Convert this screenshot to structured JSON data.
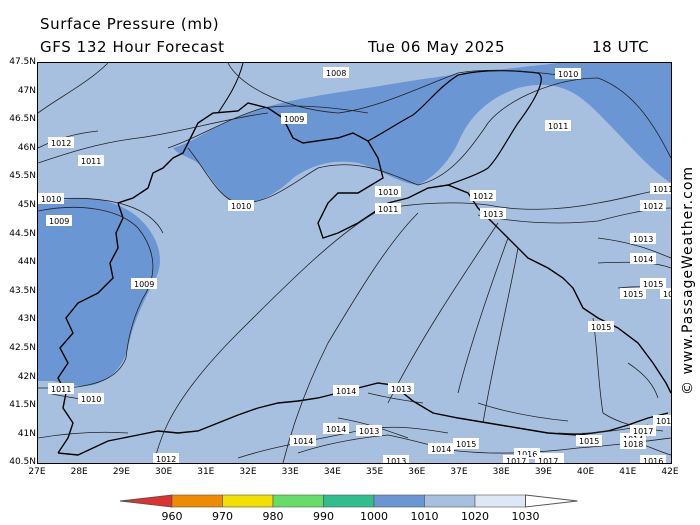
{
  "header": {
    "title": "Surface Pressure (mb)",
    "model": "GFS 132 Hour Forecast",
    "date": "Tue 06 May 2025",
    "time": "18 UTC"
  },
  "credit": "© www.PassageWeather.com",
  "lat_labels": [
    "47.5N",
    "47N",
    "46.5N",
    "46N",
    "45.5N",
    "45N",
    "44.5N",
    "44N",
    "43.5N",
    "43N",
    "42.5N",
    "42N",
    "41.5N",
    "41N",
    "40.5N"
  ],
  "lon_labels": [
    "27E",
    "28E",
    "29E",
    "30E",
    "31E",
    "32E",
    "33E",
    "34E",
    "35E",
    "36E",
    "37E",
    "38E",
    "39E",
    "40E",
    "41E",
    "42E"
  ],
  "isobars": [
    "1008",
    "1009",
    "1010",
    "1010",
    "1010",
    "1009",
    "1009",
    "1010",
    "1010",
    "1011",
    "1011",
    "1011",
    "1011",
    "1011",
    "1012",
    "1012",
    "1012",
    "1012",
    "1013",
    "1013",
    "1013",
    "1013",
    "1013",
    "1013",
    "1014",
    "1014",
    "1014",
    "1014",
    "1014",
    "1014",
    "1015",
    "1015",
    "1015",
    "1015",
    "1015",
    "1016",
    "1016",
    "1016",
    "1016",
    "1017",
    "1017",
    "1017",
    "1018",
    "1009",
    "1010"
  ],
  "legend": {
    "ticks": [
      "960",
      "970",
      "980",
      "990",
      "1000",
      "1010",
      "1020",
      "1030"
    ],
    "colors": [
      "#e03030",
      "#f08a00",
      "#f2e000",
      "#66dd66",
      "#2fbf8f",
      "#6a96d4",
      "#a8c0e0",
      "#dde7f5",
      "#ffffff"
    ]
  }
}
